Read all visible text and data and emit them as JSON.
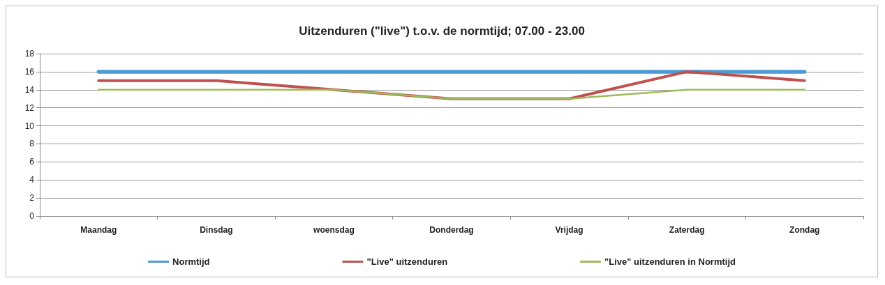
{
  "chart_data": {
    "type": "line",
    "title": "Uitzenduren (\"live\") t.o.v. de normtijd; 07.00 - 23.00",
    "categories": [
      "Maandag",
      "Dinsdag",
      "woensdag",
      "Donderdag",
      "Vrijdag",
      "Zaterdag",
      "Zondag"
    ],
    "series": [
      {
        "name": "Normtijd",
        "color": "#4a9ad4",
        "values": [
          16,
          16,
          16,
          16,
          16,
          16,
          16
        ]
      },
      {
        "name": "\"Live\" uitzenduren",
        "color": "#c0504d",
        "values": [
          15,
          15,
          14,
          13,
          13,
          16,
          15
        ]
      },
      {
        "name": "\"Live\" uitzenduren in Normtijd",
        "color": "#9bbb59",
        "values": [
          14,
          14,
          14,
          13,
          13,
          14,
          14
        ]
      }
    ],
    "ylim": [
      0,
      18
    ],
    "yticks": [
      0,
      2,
      4,
      6,
      8,
      10,
      12,
      14,
      16,
      18
    ],
    "grid": "y",
    "legend": "bottom",
    "marker": "none",
    "line_style": "solid"
  }
}
